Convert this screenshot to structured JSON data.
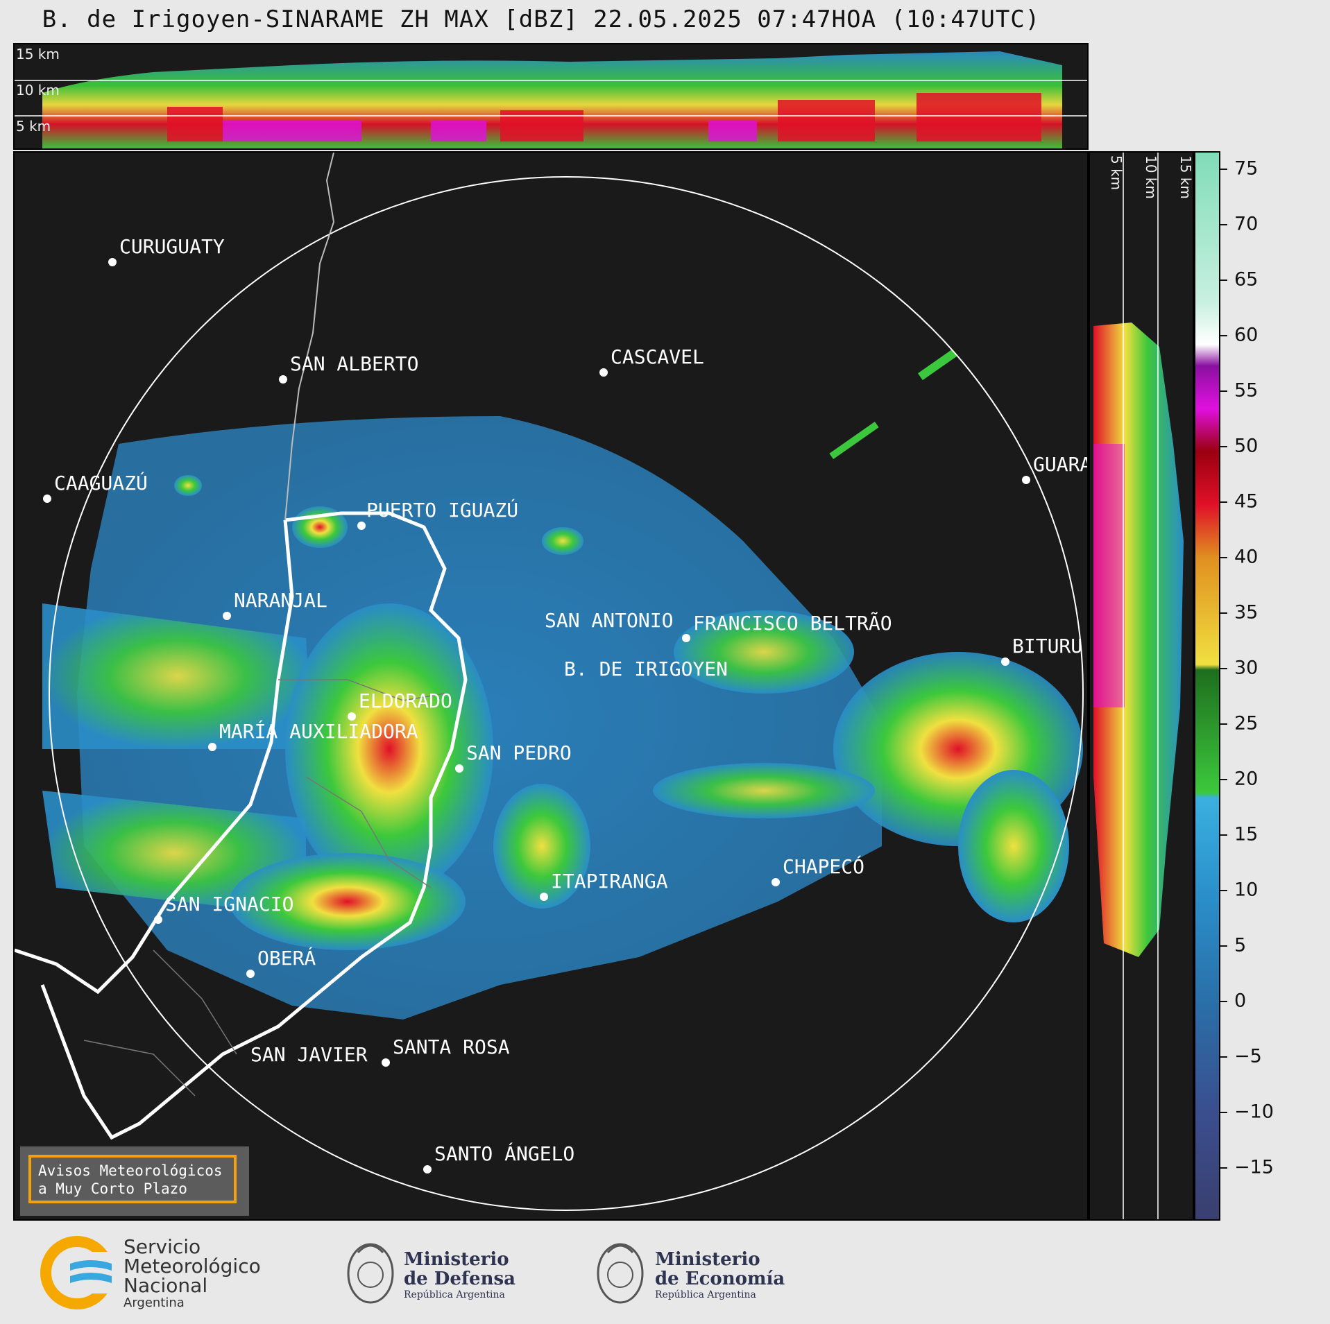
{
  "title": "B. de Irigoyen-SINARAME ZH MAX [dBZ] 22.05.2025 07:47HOA (10:47UTC)",
  "top_panel": {
    "km_labels": [
      "15 km",
      "10 km",
      "5 km"
    ]
  },
  "side_panel": {
    "km_labels": [
      "5 km",
      "10 km",
      "15 km"
    ]
  },
  "colorbar": {
    "ticks": [
      "75",
      "70",
      "65",
      "60",
      "55",
      "50",
      "45",
      "40",
      "35",
      "30",
      "25",
      "20",
      "15",
      "10",
      "5",
      "0",
      "−5",
      "−10",
      "−15"
    ],
    "colors": {
      "low": "#3a3f6e",
      "blue": "#2a8ec8",
      "light_blue": "#3ab0e0",
      "green": "#3cc83c",
      "dark_green": "#1e6e1e",
      "yellow": "#f0e040",
      "orange": "#e09020",
      "red": "#e01028",
      "dark_red": "#9a0010",
      "magenta": "#e010e0",
      "purple": "#8a10a0",
      "white": "#ffffff",
      "mint": "#80dcb8"
    }
  },
  "map": {
    "cities": [
      {
        "name": "CURUGUATY"
      },
      {
        "name": "SAN ALBERTO"
      },
      {
        "name": "CASCAVEL"
      },
      {
        "name": "CAAGUAZÚ"
      },
      {
        "name": "PUERTO IGUAZÚ"
      },
      {
        "name": "GUARA"
      },
      {
        "name": "NARANJAL"
      },
      {
        "name": "SAN ANTONIO"
      },
      {
        "name": "FRANCISCO BELTRÃO"
      },
      {
        "name": "BITURU"
      },
      {
        "name": "B. DE IRIGOYEN"
      },
      {
        "name": "ELDORADO"
      },
      {
        "name": "MARÍA AUXILIADORA"
      },
      {
        "name": "SAN PEDRO"
      },
      {
        "name": "CHAPECÓ"
      },
      {
        "name": "ITAPIRANGA"
      },
      {
        "name": "SAN IGNACIO"
      },
      {
        "name": "OBERÁ"
      },
      {
        "name": "SAN JAVIER"
      },
      {
        "name": "SANTA ROSA"
      },
      {
        "name": "SANTO ÁNGELO"
      }
    ],
    "legend": {
      "line1": "Avisos Meteorológicos",
      "line2": "a Muy Corto Plazo"
    }
  },
  "footer": {
    "smn": {
      "line1": "Servicio",
      "line2": "Meteorológico",
      "line3": "Nacional",
      "line4": "Argentina"
    },
    "defensa": {
      "line1": "Ministerio",
      "line2": "de Defensa",
      "line3": "República Argentina"
    },
    "economia": {
      "line1": "Ministerio",
      "line2": "de Economía",
      "line3": "República Argentina"
    }
  }
}
